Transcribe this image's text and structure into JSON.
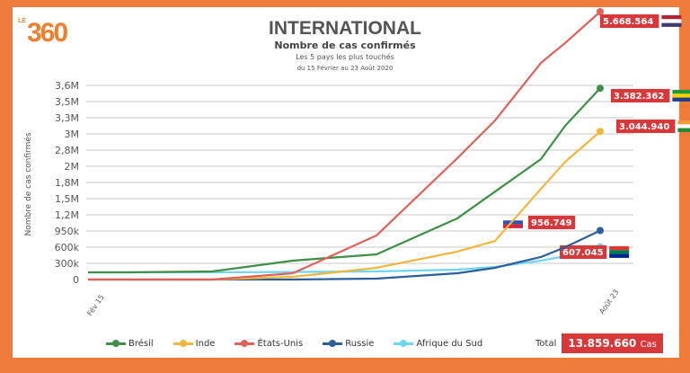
{
  "logo": {
    "small": "LE",
    "main": "360"
  },
  "header": {
    "title": "INTERNATIONAL",
    "subtitle": "Nombre de cas confirmés",
    "line2": "Les 5 pays les plus touchés",
    "line3": "du 15 Février au 23 Août 2020"
  },
  "chart_data": {
    "type": "line",
    "title": "Nombre de cas confirmés",
    "ylabel": "Nombre de cas confirmés",
    "xlabel": "",
    "x_tick_labels": [
      "Fév 15",
      "Août 23"
    ],
    "y_tick_labels": [
      "0",
      "300k",
      "600k",
      "950k",
      "1,2M",
      "1,5M",
      "1,8M",
      "2M",
      "2,8M",
      "3M",
      "3,3M",
      "3,5M",
      "3,6M"
    ],
    "y_tick_values": [
      0,
      300000,
      600000,
      950000,
      1200000,
      1500000,
      1800000,
      2000000,
      2800000,
      3000000,
      3300000,
      3500000,
      3600000
    ],
    "grid": true,
    "legend_position": "bottom",
    "x": [
      "2020-02-15",
      "2020-03-01",
      "2020-04-01",
      "2020-05-01",
      "2020-06-01",
      "2020-07-01",
      "2020-07-15",
      "2020-08-01",
      "2020-08-10",
      "2020-08-23"
    ],
    "series": [
      {
        "name": "Brésil",
        "color": "#3f8f46",
        "values": [
          133000,
          133000,
          150000,
          350000,
          467000,
          1145000,
          1630000,
          2350000,
          3150000,
          3582362
        ],
        "end_label": "3.582.362",
        "flag": "brazil"
      },
      {
        "name": "Inde",
        "color": "#f2b63c",
        "values": [
          0,
          0,
          0,
          50000,
          217000,
          517000,
          736000,
          1680000,
          2220000,
          3044940
        ],
        "end_label": "3.044.940",
        "flag": "india"
      },
      {
        "name": "États-Unis",
        "color": "#e0605a",
        "values": [
          0,
          0,
          0,
          117000,
          852000,
          2400000,
          3250000,
          4230000,
          4790000,
          5668564
        ],
        "end_label": "5.668.564",
        "flag": "usa"
      },
      {
        "name": "Russie",
        "color": "#2a5f9a",
        "values": [
          0,
          0,
          0,
          0,
          17000,
          117000,
          217000,
          417000,
          600000,
          956749
        ],
        "end_label": "956.749",
        "flag": "russia"
      },
      {
        "name": "Afrique du Sud",
        "color": "#6fd6ef",
        "values": [
          133000,
          133000,
          133000,
          140000,
          150000,
          183000,
          233000,
          350000,
          433000,
          607045
        ],
        "end_label": "607.045",
        "flag": "south-africa"
      }
    ]
  },
  "total": {
    "label": "Total",
    "value": "13.859.660",
    "unit": "Cas"
  },
  "colors": {
    "frame": "#ee7a3c",
    "label_bg": "#d9383a"
  }
}
